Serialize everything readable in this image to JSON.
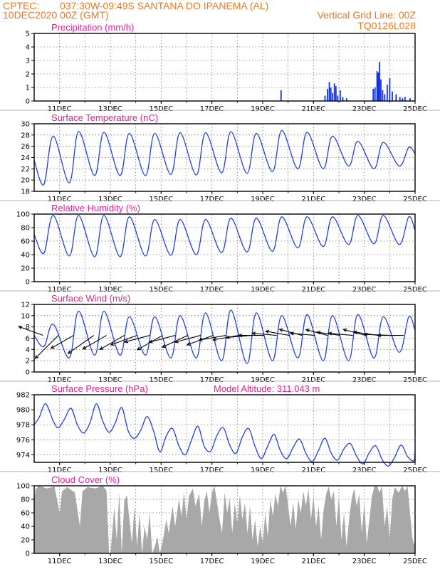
{
  "header": {
    "source": "CPTEC:",
    "location": "037:30W-09:49S  SANTANA DO IPANEMA (AL)",
    "run": "10DEC2020 00Z (GMT)",
    "grid_note": "Vertical Grid Line: 00Z",
    "model": "TQ0126L028"
  },
  "colors": {
    "line": "#2040e0",
    "bar": "#1030f0",
    "cloud": "#a8a8a8",
    "title": "#e0209a",
    "header": "#f07820"
  },
  "chart_data": [
    {
      "id": "precip",
      "type": "bar",
      "title": "Precipitation (mm/h)",
      "ylim": [
        0,
        5
      ],
      "yticks": [
        0,
        1,
        2,
        3,
        4,
        5
      ],
      "xlim": [
        10,
        25
      ],
      "xticks": [
        "11DEC",
        "13DEC",
        "15DEC",
        "17DEC",
        "19DEC",
        "21DEC",
        "23DEC",
        "25DEC"
      ],
      "x": [
        19.72,
        21.45,
        21.55,
        21.62,
        21.68,
        21.75,
        21.82,
        21.88,
        21.95,
        22.05,
        22.15,
        22.3,
        23.35,
        23.42,
        23.5,
        23.55,
        23.6,
        23.65,
        23.72,
        23.8,
        23.9,
        24.0,
        24.1,
        24.25,
        24.4,
        24.5,
        24.6,
        24.8
      ],
      "values": [
        0.8,
        0.4,
        0.9,
        1.4,
        1.0,
        0.6,
        1.3,
        1.1,
        0.4,
        0.8,
        0.3,
        0.2,
        0.9,
        1.0,
        2.2,
        2.1,
        2.9,
        1.6,
        0.8,
        0.5,
        1.2,
        1.7,
        0.7,
        0.5,
        0.3,
        0.2,
        0.3,
        0.2
      ]
    },
    {
      "id": "temp",
      "type": "line",
      "title": "Surface Temperature (nC)",
      "ylim": [
        18,
        30
      ],
      "yticks": [
        18,
        20,
        22,
        24,
        26,
        28,
        30
      ],
      "xlim": [
        10,
        25
      ],
      "xticks": [
        "11DEC",
        "13DEC",
        "15DEC",
        "17DEC",
        "19DEC",
        "21DEC",
        "23DEC",
        "25DEC"
      ],
      "max_vals": [
        27.8,
        28.6,
        28.5,
        28.3,
        28.3,
        28.4,
        28.4,
        28.6,
        28.3,
        28.8,
        28.5,
        27.8,
        26.9,
        26.7,
        25.8,
        27.3
      ],
      "min_vals": [
        19.2,
        19.5,
        20.8,
        20.8,
        20.8,
        21.0,
        20.9,
        21.3,
        21.2,
        21.5,
        22.0,
        22.0,
        22.5,
        22.0,
        22.5,
        23.5
      ]
    },
    {
      "id": "rh",
      "type": "line",
      "title": "Relative Humidity (%)",
      "ylim": [
        0,
        100
      ],
      "yticks": [
        0,
        20,
        40,
        60,
        80,
        100
      ],
      "xlim": [
        10,
        25
      ],
      "xticks": [
        "11DEC",
        "13DEC",
        "15DEC",
        "17DEC",
        "19DEC",
        "21DEC",
        "23DEC",
        "25DEC"
      ],
      "max_vals": [
        98,
        98,
        98,
        96,
        92,
        92,
        92,
        94,
        94,
        96,
        96,
        96,
        98,
        98,
        96,
        80
      ],
      "min_vals": [
        42,
        38,
        37,
        37,
        38,
        39,
        40,
        43,
        44,
        45,
        50,
        52,
        55,
        56,
        55,
        56
      ]
    },
    {
      "id": "wind",
      "type": "line",
      "title": "Surface Wind (m/s)",
      "ylim": [
        0,
        12
      ],
      "yticks": [
        0,
        2,
        4,
        6,
        8,
        10,
        12
      ],
      "xlim": [
        10,
        25
      ],
      "xticks": [
        "11DEC",
        "13DEC",
        "15DEC",
        "17DEC",
        "19DEC",
        "21DEC",
        "23DEC",
        "25DEC"
      ],
      "max_vals": [
        8.5,
        10.8,
        10.8,
        9.8,
        9.8,
        10.0,
        10.5,
        11.0,
        10.5,
        10.0,
        10.2,
        10.0,
        10.2,
        9.8,
        9.8,
        9.0
      ],
      "min_vals": [
        4.5,
        2.5,
        3.0,
        3.0,
        3.0,
        2.5,
        2.5,
        2.0,
        1.5,
        2.0,
        2.5,
        2.0,
        2.0,
        2.5,
        3.5,
        5.0
      ],
      "vectors": [
        {
          "day": 10.35,
          "speed": 7.0,
          "dir": 250
        },
        {
          "day": 10.95,
          "speed": 8.8,
          "dir": 315
        },
        {
          "day": 11.55,
          "speed": 7.0,
          "dir": 300
        },
        {
          "day": 12.35,
          "speed": 8.5,
          "dir": 305
        },
        {
          "day": 12.85,
          "speed": 7.4,
          "dir": 300
        },
        {
          "day": 13.55,
          "speed": 7.6,
          "dir": 300
        },
        {
          "day": 14.05,
          "speed": 7.5,
          "dir": 290
        },
        {
          "day": 14.55,
          "speed": 7.0,
          "dir": 285
        },
        {
          "day": 15.05,
          "speed": 7.8,
          "dir": 300
        },
        {
          "day": 15.55,
          "speed": 7.2,
          "dir": 285
        },
        {
          "day": 16.05,
          "speed": 7.6,
          "dir": 295
        },
        {
          "day": 16.55,
          "speed": 7.1,
          "dir": 285
        },
        {
          "day": 17.05,
          "speed": 7.5,
          "dir": 290
        },
        {
          "day": 17.55,
          "speed": 7.3,
          "dir": 280
        },
        {
          "day": 18.05,
          "speed": 7.0,
          "dir": 280
        },
        {
          "day": 18.55,
          "speed": 6.8,
          "dir": 275
        },
        {
          "day": 19.05,
          "speed": 6.8,
          "dir": 270
        },
        {
          "day": 19.55,
          "speed": 6.6,
          "dir": 265
        },
        {
          "day": 20.05,
          "speed": 6.5,
          "dir": 260
        },
        {
          "day": 20.55,
          "speed": 6.3,
          "dir": 255
        },
        {
          "day": 21.05,
          "speed": 6.6,
          "dir": 265
        },
        {
          "day": 21.55,
          "speed": 6.0,
          "dir": 255
        },
        {
          "day": 22.05,
          "speed": 6.3,
          "dir": 262
        },
        {
          "day": 22.55,
          "speed": 6.6,
          "dir": 265
        },
        {
          "day": 23.05,
          "speed": 6.2,
          "dir": 255
        },
        {
          "day": 23.55,
          "speed": 6.7,
          "dir": 262
        },
        {
          "day": 24.05,
          "speed": 7.2,
          "dir": 268
        },
        {
          "day": 24.55,
          "speed": 7.0,
          "dir": 270
        }
      ]
    },
    {
      "id": "pres",
      "type": "line",
      "title": "Surface Pressure (hPa)",
      "subtitle": "Model Altitude: 311.043 m",
      "ylim": [
        973,
        982
      ],
      "yticks": [
        974,
        976,
        978,
        980,
        982
      ],
      "xlim": [
        10,
        25
      ],
      "xticks": [
        "11DEC",
        "13DEC",
        "15DEC",
        "17DEC",
        "19DEC",
        "21DEC",
        "23DEC",
        "25DEC"
      ],
      "points": [
        [
          10.0,
          978.0
        ],
        [
          10.2,
          979.0
        ],
        [
          10.45,
          980.8
        ],
        [
          10.75,
          978.5
        ],
        [
          10.95,
          977.6
        ],
        [
          11.2,
          978.8
        ],
        [
          11.45,
          980.2
        ],
        [
          11.7,
          978.0
        ],
        [
          11.95,
          976.9
        ],
        [
          12.2,
          978.3
        ],
        [
          12.45,
          980.8
        ],
        [
          12.7,
          978.5
        ],
        [
          12.95,
          977.0
        ],
        [
          13.2,
          978.3
        ],
        [
          13.45,
          980.3
        ],
        [
          13.7,
          977.2
        ],
        [
          13.95,
          976.2
        ],
        [
          14.2,
          977.3
        ],
        [
          14.45,
          979.1
        ],
        [
          14.7,
          977.2
        ],
        [
          14.95,
          974.4
        ],
        [
          15.2,
          976.5
        ],
        [
          15.45,
          977.5
        ],
        [
          15.7,
          975.2
        ],
        [
          15.95,
          974.0
        ],
        [
          16.2,
          976.0
        ],
        [
          16.45,
          977.8
        ],
        [
          16.7,
          975.1
        ],
        [
          16.95,
          974.5
        ],
        [
          17.2,
          976.6
        ],
        [
          17.45,
          977.6
        ],
        [
          17.7,
          975.3
        ],
        [
          17.95,
          974.2
        ],
        [
          18.2,
          976.4
        ],
        [
          18.45,
          977.5
        ],
        [
          18.7,
          975.1
        ],
        [
          18.95,
          973.5
        ],
        [
          19.2,
          975.2
        ],
        [
          19.45,
          976.7
        ],
        [
          19.7,
          974.5
        ],
        [
          19.95,
          973.5
        ],
        [
          20.2,
          975.0
        ],
        [
          20.45,
          976.1
        ],
        [
          20.7,
          974.2
        ],
        [
          20.95,
          973.1
        ],
        [
          21.2,
          974.6
        ],
        [
          21.45,
          976.2
        ],
        [
          21.7,
          974.2
        ],
        [
          21.95,
          973.3
        ],
        [
          22.2,
          974.8
        ],
        [
          22.45,
          975.5
        ],
        [
          22.7,
          973.8
        ],
        [
          22.95,
          972.8
        ],
        [
          23.2,
          974.3
        ],
        [
          23.45,
          975.2
        ],
        [
          23.7,
          973.4
        ],
        [
          23.95,
          972.5
        ],
        [
          24.2,
          973.7
        ],
        [
          24.45,
          975.3
        ],
        [
          24.7,
          973.8
        ],
        [
          24.95,
          973.2
        ],
        [
          25.0,
          974.5
        ]
      ]
    },
    {
      "id": "cloud",
      "type": "area",
      "title": "Cloud Cover (%)",
      "ylim": [
        0,
        100
      ],
      "yticks": [
        0,
        20,
        40,
        60,
        80,
        100
      ],
      "xlim": [
        10,
        25
      ],
      "xticks": [
        "11DEC",
        "13DEC",
        "15DEC",
        "17DEC",
        "19DEC",
        "21DEC",
        "23DEC",
        "25DEC"
      ],
      "points": [
        [
          10.0,
          80
        ],
        [
          10.05,
          95
        ],
        [
          10.2,
          100
        ],
        [
          10.5,
          96
        ],
        [
          10.8,
          99
        ],
        [
          11.0,
          60
        ],
        [
          11.1,
          92
        ],
        [
          11.3,
          98
        ],
        [
          11.6,
          90
        ],
        [
          11.8,
          40
        ],
        [
          11.9,
          92
        ],
        [
          12.1,
          98
        ],
        [
          12.4,
          96
        ],
        [
          12.7,
          100
        ],
        [
          12.85,
          93
        ],
        [
          12.95,
          0
        ],
        [
          13.0,
          0
        ],
        [
          13.05,
          20
        ],
        [
          13.15,
          68
        ],
        [
          13.25,
          20
        ],
        [
          13.35,
          90
        ],
        [
          13.45,
          0
        ],
        [
          13.55,
          78
        ],
        [
          13.65,
          86
        ],
        [
          13.75,
          50
        ],
        [
          13.85,
          15
        ],
        [
          13.95,
          70
        ],
        [
          14.05,
          10
        ],
        [
          14.15,
          60
        ],
        [
          14.25,
          0
        ],
        [
          14.35,
          40
        ],
        [
          14.45,
          20
        ],
        [
          14.55,
          60
        ],
        [
          14.65,
          0
        ],
        [
          14.75,
          10
        ],
        [
          14.85,
          25
        ],
        [
          14.95,
          0
        ],
        [
          15.05,
          15
        ],
        [
          15.2,
          50
        ],
        [
          15.3,
          30
        ],
        [
          15.45,
          70
        ],
        [
          15.55,
          40
        ],
        [
          15.7,
          80
        ],
        [
          15.8,
          55
        ],
        [
          15.9,
          90
        ],
        [
          16.0,
          50
        ],
        [
          16.1,
          85
        ],
        [
          16.25,
          96
        ],
        [
          16.35,
          70
        ],
        [
          16.5,
          88
        ],
        [
          16.6,
          40
        ],
        [
          16.7,
          78
        ],
        [
          16.8,
          92
        ],
        [
          16.9,
          60
        ],
        [
          17.0,
          90
        ],
        [
          17.1,
          100
        ],
        [
          17.2,
          75
        ],
        [
          17.3,
          50
        ],
        [
          17.4,
          30
        ],
        [
          17.5,
          90
        ],
        [
          17.6,
          60
        ],
        [
          17.7,
          82
        ],
        [
          17.8,
          30
        ],
        [
          17.9,
          75
        ],
        [
          18.0,
          45
        ],
        [
          18.1,
          86
        ],
        [
          18.2,
          50
        ],
        [
          18.3,
          75
        ],
        [
          18.4,
          30
        ],
        [
          18.5,
          70
        ],
        [
          18.6,
          20
        ],
        [
          18.7,
          50
        ],
        [
          18.8,
          10
        ],
        [
          18.9,
          40
        ],
        [
          19.0,
          15
        ],
        [
          19.1,
          60
        ],
        [
          19.2,
          25
        ],
        [
          19.3,
          80
        ],
        [
          19.4,
          55
        ],
        [
          19.5,
          88
        ],
        [
          19.6,
          70
        ],
        [
          19.7,
          100
        ],
        [
          19.8,
          90
        ],
        [
          19.9,
          100
        ],
        [
          20.0,
          70
        ],
        [
          20.1,
          40
        ],
        [
          20.2,
          75
        ],
        [
          20.3,
          35
        ],
        [
          20.4,
          80
        ],
        [
          20.5,
          60
        ],
        [
          20.6,
          92
        ],
        [
          20.7,
          70
        ],
        [
          20.8,
          95
        ],
        [
          20.9,
          50
        ],
        [
          21.0,
          85
        ],
        [
          21.1,
          40
        ],
        [
          21.2,
          70
        ],
        [
          21.3,
          20
        ],
        [
          21.4,
          65
        ],
        [
          21.5,
          88
        ],
        [
          21.6,
          99
        ],
        [
          21.7,
          80
        ],
        [
          21.8,
          92
        ],
        [
          21.9,
          40
        ],
        [
          22.0,
          85
        ],
        [
          22.1,
          20
        ],
        [
          22.2,
          60
        ],
        [
          22.3,
          10
        ],
        [
          22.4,
          50
        ],
        [
          22.5,
          80
        ],
        [
          22.6,
          96
        ],
        [
          22.7,
          70
        ],
        [
          22.8,
          88
        ],
        [
          22.9,
          30
        ],
        [
          23.0,
          75
        ],
        [
          23.1,
          15
        ],
        [
          23.2,
          50
        ],
        [
          23.3,
          85
        ],
        [
          23.4,
          99
        ],
        [
          23.5,
          100
        ],
        [
          23.6,
          90
        ],
        [
          23.7,
          99
        ],
        [
          23.8,
          40
        ],
        [
          23.9,
          70
        ],
        [
          24.0,
          20
        ],
        [
          24.1,
          80
        ],
        [
          24.2,
          98
        ],
        [
          24.35,
          90
        ],
        [
          24.5,
          100
        ],
        [
          24.6,
          92
        ],
        [
          24.7,
          100
        ],
        [
          24.8,
          60
        ],
        [
          24.9,
          20
        ],
        [
          25.0,
          10
        ]
      ]
    }
  ]
}
